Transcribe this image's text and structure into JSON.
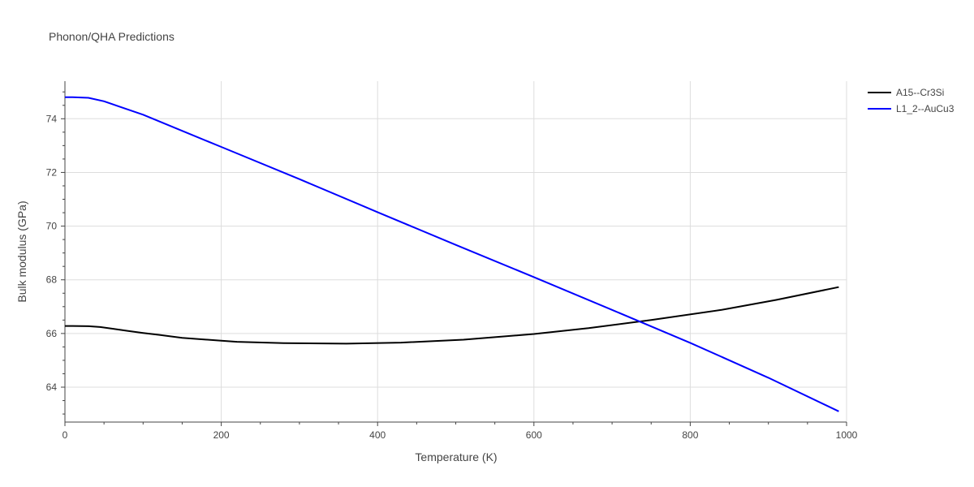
{
  "chart_data": {
    "type": "line",
    "title": "Phonon/QHA Predictions",
    "xlabel": "Temperature (K)",
    "ylabel": "Bulk modulus (GPa)",
    "xlim": [
      0,
      1000
    ],
    "ylim": [
      62.7,
      75.4
    ],
    "xticks": [
      0,
      200,
      400,
      600,
      800,
      1000
    ],
    "yticks": [
      64,
      66,
      68,
      70,
      72,
      74
    ],
    "grid": true,
    "legend_position": "top-right",
    "series": [
      {
        "name": "A15--Cr3Si",
        "color": "#000000",
        "x": [
          0,
          10,
          30,
          45,
          60,
          80,
          100,
          120,
          150,
          200,
          220,
          280,
          360,
          430,
          510,
          600,
          670,
          750,
          840,
          910,
          990
        ],
        "y": [
          66.28,
          66.28,
          66.27,
          66.24,
          66.18,
          66.1,
          66.02,
          65.95,
          65.84,
          65.73,
          65.69,
          65.64,
          65.62,
          65.66,
          65.77,
          65.98,
          66.2,
          66.5,
          66.88,
          67.25,
          67.73
        ]
      },
      {
        "name": "L1_2--AuCu3",
        "color": "#0000ff",
        "x": [
          0,
          10,
          30,
          50,
          70,
          100,
          150,
          200,
          300,
          400,
          500,
          600,
          700,
          800,
          900,
          990
        ],
        "y": [
          74.8,
          74.8,
          74.78,
          74.65,
          74.45,
          74.15,
          73.55,
          72.95,
          71.75,
          70.52,
          69.3,
          68.1,
          66.88,
          65.65,
          64.35,
          63.1
        ]
      }
    ]
  }
}
